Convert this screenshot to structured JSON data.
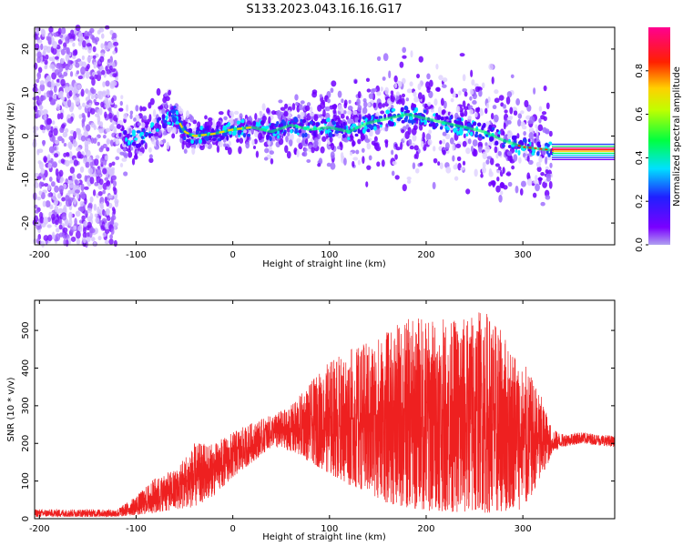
{
  "title": "S133.2023.043.16.16.G17",
  "colors": {
    "snr_line": "#ee2020",
    "axis": "#000000",
    "background": "#ffffff"
  },
  "chart_data": [
    {
      "type": "heatmap",
      "title": "S133.2023.043.16.16.G17",
      "xlabel": "Height of straight line (km)",
      "ylabel": "Frequency (Hz)",
      "xlim": [
        -205,
        395
      ],
      "ylim": [
        -25,
        25
      ],
      "x_ticks": [
        -200,
        -100,
        0,
        100,
        200,
        300
      ],
      "y_ticks": [
        -20,
        -10,
        0,
        10,
        20
      ],
      "grid": false,
      "colorbar": {
        "label": "Normalized spectral amplitude",
        "range": [
          0.0,
          1.0
        ],
        "ticks": [
          0.0,
          0.2,
          0.4,
          0.6,
          0.8
        ],
        "colormap": "rainbow (purple-blue-cyan-green-yellow-red-magenta)"
      },
      "ridge": [
        {
          "x": -120,
          "y": 1
        },
        {
          "x": -100,
          "y": -1
        },
        {
          "x": -80,
          "y": 1.5
        },
        {
          "x": -60,
          "y": 5
        },
        {
          "x": -50,
          "y": 1
        },
        {
          "x": -40,
          "y": 0
        },
        {
          "x": -20,
          "y": 0.5
        },
        {
          "x": 0,
          "y": 1.5
        },
        {
          "x": 20,
          "y": 2
        },
        {
          "x": 40,
          "y": 1
        },
        {
          "x": 60,
          "y": 2.5
        },
        {
          "x": 80,
          "y": 1.5
        },
        {
          "x": 100,
          "y": 2
        },
        {
          "x": 120,
          "y": 1
        },
        {
          "x": 140,
          "y": 3
        },
        {
          "x": 160,
          "y": 4
        },
        {
          "x": 180,
          "y": 5
        },
        {
          "x": 200,
          "y": 4
        },
        {
          "x": 220,
          "y": 3
        },
        {
          "x": 240,
          "y": 2
        },
        {
          "x": 260,
          "y": 1
        },
        {
          "x": 280,
          "y": -1
        },
        {
          "x": 300,
          "y": -2.5
        },
        {
          "x": 320,
          "y": -3
        },
        {
          "x": 340,
          "y": -3.5
        },
        {
          "x": 395,
          "y": -3.5
        }
      ],
      "scatter_noise_xlim": [
        -205,
        -120
      ]
    },
    {
      "type": "line",
      "xlabel": "Height of straight line (km)",
      "ylabel": "SNR (10 * v/v)",
      "xlim": [
        -205,
        395
      ],
      "ylim": [
        0,
        580
      ],
      "x_ticks": [
        -200,
        -100,
        0,
        100,
        200,
        300
      ],
      "y_ticks": [
        0,
        100,
        200,
        300,
        400,
        500
      ],
      "grid": false,
      "envelope": [
        {
          "x": -205,
          "lo": 5,
          "hi": 25
        },
        {
          "x": -120,
          "lo": 5,
          "hi": 25
        },
        {
          "x": -100,
          "lo": 10,
          "hi": 60
        },
        {
          "x": -80,
          "lo": 15,
          "hi": 110
        },
        {
          "x": -60,
          "lo": 25,
          "hi": 130
        },
        {
          "x": -40,
          "lo": 30,
          "hi": 200
        },
        {
          "x": -20,
          "lo": 60,
          "hi": 200
        },
        {
          "x": 0,
          "lo": 110,
          "hi": 230
        },
        {
          "x": 20,
          "lo": 150,
          "hi": 255
        },
        {
          "x": 40,
          "lo": 190,
          "hi": 275
        },
        {
          "x": 60,
          "lo": 180,
          "hi": 300
        },
        {
          "x": 80,
          "lo": 150,
          "hi": 360
        },
        {
          "x": 100,
          "lo": 120,
          "hi": 420
        },
        {
          "x": 120,
          "lo": 90,
          "hi": 450
        },
        {
          "x": 140,
          "lo": 70,
          "hi": 470
        },
        {
          "x": 160,
          "lo": 40,
          "hi": 500
        },
        {
          "x": 180,
          "lo": 30,
          "hi": 530
        },
        {
          "x": 200,
          "lo": 20,
          "hi": 540
        },
        {
          "x": 220,
          "lo": 20,
          "hi": 530
        },
        {
          "x": 240,
          "lo": 15,
          "hi": 540
        },
        {
          "x": 260,
          "lo": 15,
          "hi": 560
        },
        {
          "x": 280,
          "lo": 20,
          "hi": 490
        },
        {
          "x": 300,
          "lo": 20,
          "hi": 420
        },
        {
          "x": 320,
          "lo": 110,
          "hi": 320
        },
        {
          "x": 330,
          "lo": 170,
          "hi": 240
        },
        {
          "x": 340,
          "lo": 190,
          "hi": 225
        },
        {
          "x": 360,
          "lo": 200,
          "hi": 230
        },
        {
          "x": 395,
          "lo": 190,
          "hi": 220
        }
      ]
    }
  ]
}
